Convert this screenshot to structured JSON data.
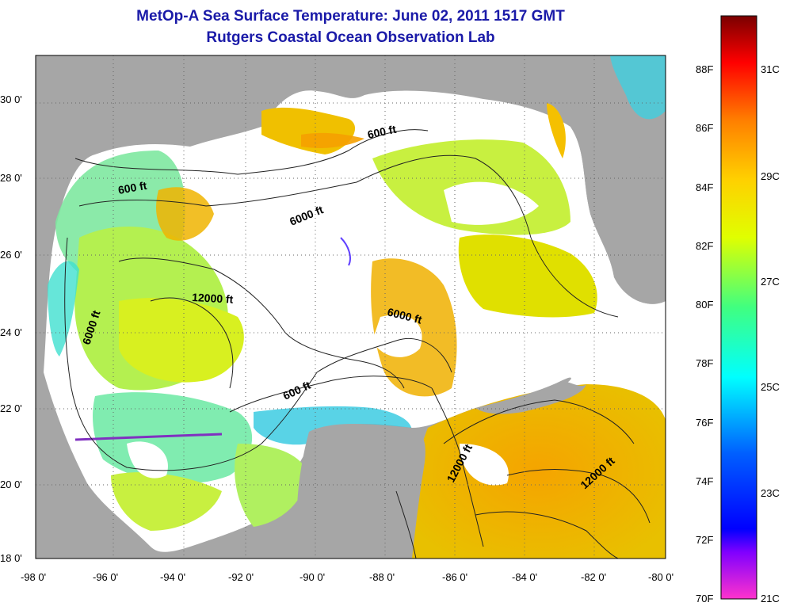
{
  "title": "MetOp-A Sea Surface Temperature:  June 02, 2011 1517 GMT",
  "subtitle": "Rutgers Coastal Ocean Observation Lab",
  "map": {
    "x_labels": [
      "-98 0'",
      "-96 0'",
      "-94 0'",
      "-92 0'",
      "-90 0'",
      "-88 0'",
      "-86 0'",
      "-84 0'",
      "-82 0'",
      "-80 0'"
    ],
    "y_labels": [
      "30 0'",
      "28 0'",
      "26 0'",
      "24 0'",
      "22 0'",
      "20 0'",
      "18 0'"
    ],
    "lon_range": [
      -98,
      -80
    ],
    "lat_range": [
      18,
      31
    ],
    "land_color": "#a6a6a6",
    "cloud_color": "#ffffff",
    "grid": "dotted",
    "contour_labels": [
      "600 ft",
      "600 ft",
      "6000 ft",
      "600 ft",
      "12000 ft",
      "6000 ft",
      "6000 ft",
      "600 ft",
      "12000 ft",
      "12000 ft"
    ]
  },
  "colorbar": {
    "f_labels": [
      "88F",
      "86F",
      "84F",
      "82F",
      "80F",
      "78F",
      "76F",
      "74F",
      "72F",
      "70F"
    ],
    "c_labels": [
      "31C",
      "29C",
      "27C",
      "25C",
      "23C",
      "21C"
    ],
    "colors": [
      "#8b0000",
      "#ff0000",
      "#ff8c00",
      "#ffff00",
      "#7fff00",
      "#00ffff",
      "#0040ff",
      "#0000ff",
      "#8000ff",
      "#ff00ff"
    ]
  }
}
